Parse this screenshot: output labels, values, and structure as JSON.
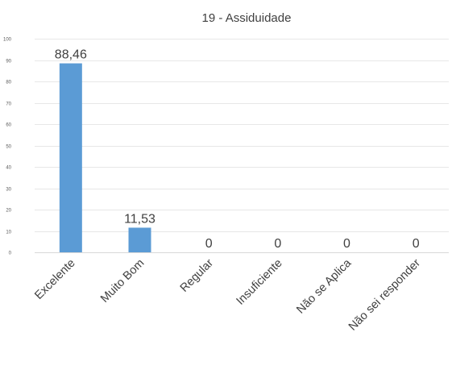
{
  "chart_data": {
    "type": "bar",
    "title": "19 - Assiduidade",
    "categories": [
      "Excelente",
      "Muito Bom",
      "Regular",
      "Insuficiente",
      "Não se Aplica",
      "Não sei responder"
    ],
    "values": [
      88.46,
      11.53,
      0,
      0,
      0,
      0
    ],
    "data_labels": [
      "88,46",
      "11,53",
      "0",
      "0",
      "0",
      "0"
    ],
    "ylim": [
      0,
      100
    ],
    "yticks": [
      0,
      10,
      20,
      30,
      40,
      50,
      60,
      70,
      80,
      90,
      100
    ],
    "grid": true,
    "legend": "none",
    "bar_color": "#5b9bd5",
    "grid_color": "#e7e7e7",
    "axis_color": "#d9d9d9"
  }
}
